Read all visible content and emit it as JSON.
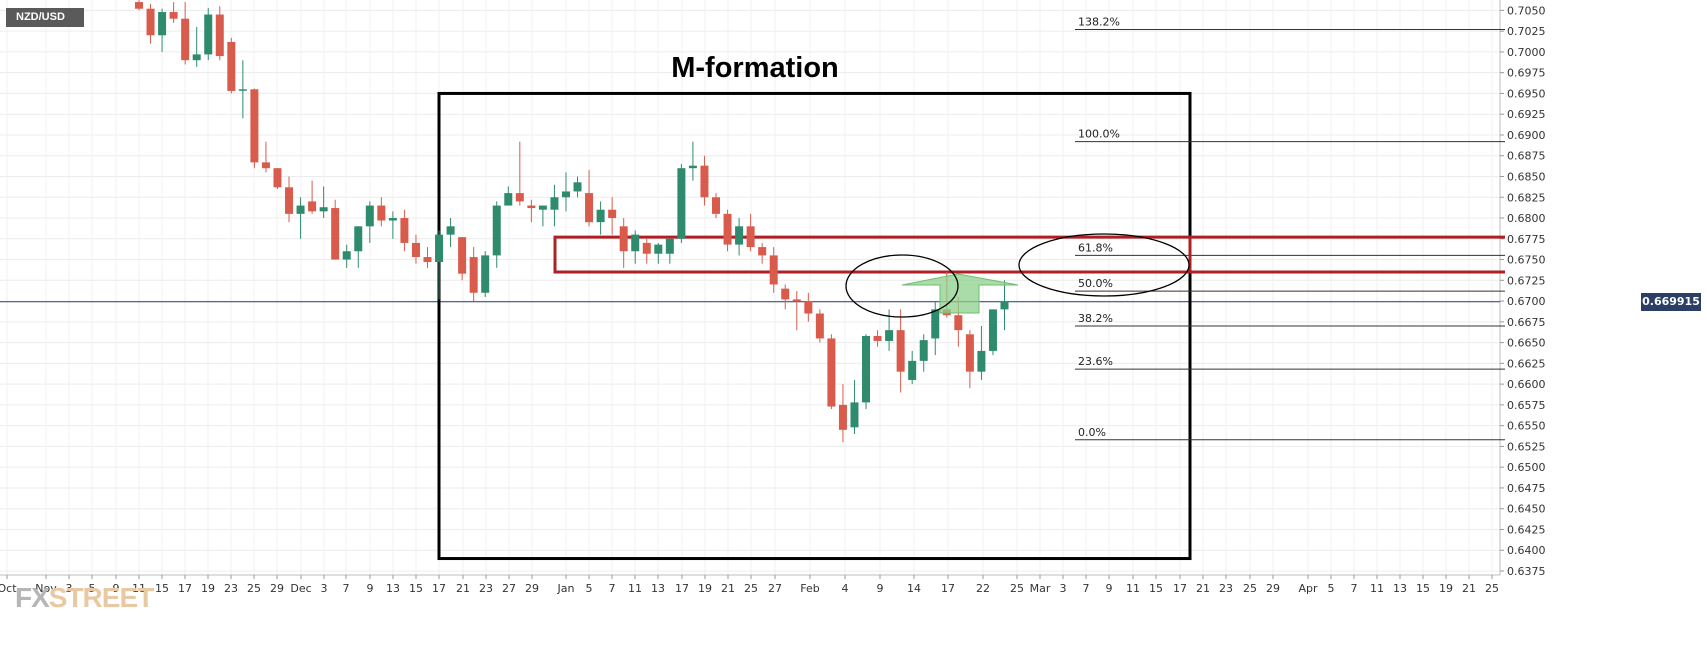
{
  "symbol": "NZD/USD",
  "annotation_title": "M-formation",
  "current_price_label": "0.669915",
  "logo": {
    "fx": "FX",
    "street": "STREET"
  },
  "colors": {
    "up": "#2e8b6e",
    "down": "#d95b4c",
    "box": "#000000",
    "zone": "#b01f24",
    "arrow": "#8ed08e",
    "price_line": "#2b3e63"
  },
  "chart_data": {
    "type": "candlestick",
    "title": "",
    "price_range": [
      0.6375,
      0.7055
    ],
    "y_ticks": [
      "0.7050",
      "0.7025",
      "0.7000",
      "0.6975",
      "0.6950",
      "0.6925",
      "0.6900",
      "0.6875",
      "0.6850",
      "0.6825",
      "0.6800",
      "0.6775",
      "0.6750",
      "0.6725",
      "0.6700",
      "0.6675",
      "0.6650",
      "0.6625",
      "0.6600",
      "0.6575",
      "0.6550",
      "0.6525",
      "0.6500",
      "0.6475",
      "0.6450",
      "0.6425",
      "0.6400",
      "0.6375"
    ],
    "x_ticks": [
      "Oct",
      "Nov",
      "3",
      "5",
      "9",
      "11",
      "15",
      "17",
      "19",
      "23",
      "25",
      "29",
      "Dec",
      "3",
      "7",
      "9",
      "13",
      "15",
      "17",
      "21",
      "23",
      "27",
      "29",
      "Jan",
      "5",
      "7",
      "11",
      "13",
      "17",
      "19",
      "21",
      "25",
      "27",
      "Feb",
      "4",
      "9",
      "14",
      "17",
      "22",
      "25",
      "Mar",
      "3",
      "7",
      "9",
      "11",
      "15",
      "17",
      "21",
      "23",
      "25",
      "29",
      "Apr",
      "5",
      "7",
      "11",
      "13",
      "15",
      "19",
      "21",
      "25"
    ],
    "current_price": 0.669915,
    "candles": [
      {
        "o": 0.706,
        "h": 0.7075,
        "l": 0.705,
        "c": 0.7052
      },
      {
        "o": 0.7052,
        "h": 0.7058,
        "l": 0.701,
        "c": 0.702
      },
      {
        "o": 0.702,
        "h": 0.7052,
        "l": 0.7,
        "c": 0.7048
      },
      {
        "o": 0.7048,
        "h": 0.706,
        "l": 0.7035,
        "c": 0.704
      },
      {
        "o": 0.704,
        "h": 0.706,
        "l": 0.6985,
        "c": 0.699
      },
      {
        "o": 0.699,
        "h": 0.703,
        "l": 0.6982,
        "c": 0.6997
      },
      {
        "o": 0.6997,
        "h": 0.7053,
        "l": 0.699,
        "c": 0.7045
      },
      {
        "o": 0.7045,
        "h": 0.7055,
        "l": 0.699,
        "c": 0.6995
      },
      {
        "o": 0.7012,
        "h": 0.7017,
        "l": 0.695,
        "c": 0.6953
      },
      {
        "o": 0.6954,
        "h": 0.699,
        "l": 0.692,
        "c": 0.6955
      },
      {
        "o": 0.6955,
        "h": 0.6956,
        "l": 0.686,
        "c": 0.6867
      },
      {
        "o": 0.6867,
        "h": 0.6892,
        "l": 0.6855,
        "c": 0.686
      },
      {
        "o": 0.686,
        "h": 0.686,
        "l": 0.6835,
        "c": 0.6837
      },
      {
        "o": 0.6837,
        "h": 0.685,
        "l": 0.6795,
        "c": 0.6805
      },
      {
        "o": 0.6805,
        "h": 0.6825,
        "l": 0.6775,
        "c": 0.6815
      },
      {
        "o": 0.682,
        "h": 0.6845,
        "l": 0.6805,
        "c": 0.6808
      },
      {
        "o": 0.6808,
        "h": 0.6838,
        "l": 0.68,
        "c": 0.6813
      },
      {
        "o": 0.6812,
        "h": 0.6822,
        "l": 0.675,
        "c": 0.675
      },
      {
        "o": 0.675,
        "h": 0.6768,
        "l": 0.674,
        "c": 0.676
      },
      {
        "o": 0.676,
        "h": 0.679,
        "l": 0.674,
        "c": 0.679
      },
      {
        "o": 0.679,
        "h": 0.682,
        "l": 0.677,
        "c": 0.6815
      },
      {
        "o": 0.6815,
        "h": 0.6825,
        "l": 0.679,
        "c": 0.6797
      },
      {
        "o": 0.6797,
        "h": 0.6808,
        "l": 0.6775,
        "c": 0.68
      },
      {
        "o": 0.68,
        "h": 0.681,
        "l": 0.676,
        "c": 0.677
      },
      {
        "o": 0.677,
        "h": 0.678,
        "l": 0.6745,
        "c": 0.6753
      },
      {
        "o": 0.6753,
        "h": 0.6765,
        "l": 0.674,
        "c": 0.6747
      },
      {
        "o": 0.6747,
        "h": 0.6785,
        "l": 0.6702,
        "c": 0.678
      },
      {
        "o": 0.678,
        "h": 0.68,
        "l": 0.6765,
        "c": 0.679
      },
      {
        "o": 0.6777,
        "h": 0.6777,
        "l": 0.6725,
        "c": 0.6733
      },
      {
        "o": 0.6753,
        "h": 0.6765,
        "l": 0.67,
        "c": 0.671
      },
      {
        "o": 0.671,
        "h": 0.676,
        "l": 0.6705,
        "c": 0.6755
      },
      {
        "o": 0.6755,
        "h": 0.682,
        "l": 0.674,
        "c": 0.6815
      },
      {
        "o": 0.6815,
        "h": 0.6838,
        "l": 0.6815,
        "c": 0.683
      },
      {
        "o": 0.683,
        "h": 0.6892,
        "l": 0.6815,
        "c": 0.682
      },
      {
        "o": 0.6815,
        "h": 0.6822,
        "l": 0.6795,
        "c": 0.6812
      },
      {
        "o": 0.681,
        "h": 0.6815,
        "l": 0.679,
        "c": 0.6815
      },
      {
        "o": 0.681,
        "h": 0.684,
        "l": 0.679,
        "c": 0.6825
      },
      {
        "o": 0.6825,
        "h": 0.6855,
        "l": 0.6808,
        "c": 0.6832
      },
      {
        "o": 0.6832,
        "h": 0.685,
        "l": 0.6825,
        "c": 0.6843
      },
      {
        "o": 0.683,
        "h": 0.6858,
        "l": 0.679,
        "c": 0.6795
      },
      {
        "o": 0.6795,
        "h": 0.682,
        "l": 0.678,
        "c": 0.681
      },
      {
        "o": 0.681,
        "h": 0.6825,
        "l": 0.678,
        "c": 0.68
      },
      {
        "o": 0.679,
        "h": 0.68,
        "l": 0.674,
        "c": 0.676
      },
      {
        "o": 0.676,
        "h": 0.6785,
        "l": 0.6745,
        "c": 0.678
      },
      {
        "o": 0.677,
        "h": 0.6775,
        "l": 0.6745,
        "c": 0.6757
      },
      {
        "o": 0.6757,
        "h": 0.677,
        "l": 0.6745,
        "c": 0.6768
      },
      {
        "o": 0.6757,
        "h": 0.6775,
        "l": 0.6745,
        "c": 0.6775
      },
      {
        "o": 0.6775,
        "h": 0.6865,
        "l": 0.677,
        "c": 0.686
      },
      {
        "o": 0.686,
        "h": 0.6892,
        "l": 0.6845,
        "c": 0.6863
      },
      {
        "o": 0.6863,
        "h": 0.6875,
        "l": 0.6815,
        "c": 0.6825
      },
      {
        "o": 0.6825,
        "h": 0.683,
        "l": 0.68,
        "c": 0.6805
      },
      {
        "o": 0.6805,
        "h": 0.681,
        "l": 0.676,
        "c": 0.6768
      },
      {
        "o": 0.6768,
        "h": 0.68,
        "l": 0.6755,
        "c": 0.679
      },
      {
        "o": 0.679,
        "h": 0.6805,
        "l": 0.676,
        "c": 0.6765
      },
      {
        "o": 0.6765,
        "h": 0.677,
        "l": 0.6745,
        "c": 0.6755
      },
      {
        "o": 0.6755,
        "h": 0.6765,
        "l": 0.671,
        "c": 0.672
      },
      {
        "o": 0.6715,
        "h": 0.672,
        "l": 0.669,
        "c": 0.6702
      },
      {
        "o": 0.6702,
        "h": 0.6712,
        "l": 0.6665,
        "c": 0.67
      },
      {
        "o": 0.67,
        "h": 0.671,
        "l": 0.6675,
        "c": 0.6685
      },
      {
        "o": 0.6685,
        "h": 0.669,
        "l": 0.665,
        "c": 0.6655
      },
      {
        "o": 0.6655,
        "h": 0.666,
        "l": 0.657,
        "c": 0.6573
      },
      {
        "o": 0.6575,
        "h": 0.66,
        "l": 0.653,
        "c": 0.6545
      },
      {
        "o": 0.6548,
        "h": 0.6605,
        "l": 0.654,
        "c": 0.6578
      },
      {
        "o": 0.6578,
        "h": 0.666,
        "l": 0.657,
        "c": 0.6658
      },
      {
        "o": 0.6658,
        "h": 0.6665,
        "l": 0.6645,
        "c": 0.6652
      },
      {
        "o": 0.6652,
        "h": 0.669,
        "l": 0.664,
        "c": 0.6665
      },
      {
        "o": 0.6665,
        "h": 0.669,
        "l": 0.659,
        "c": 0.6615
      },
      {
        "o": 0.6605,
        "h": 0.664,
        "l": 0.66,
        "c": 0.6628
      },
      {
        "o": 0.6628,
        "h": 0.666,
        "l": 0.6615,
        "c": 0.6653
      },
      {
        "o": 0.6655,
        "h": 0.67,
        "l": 0.6635,
        "c": 0.669
      },
      {
        "o": 0.669,
        "h": 0.6735,
        "l": 0.668,
        "c": 0.6683
      },
      {
        "o": 0.6683,
        "h": 0.6705,
        "l": 0.6645,
        "c": 0.6665
      },
      {
        "o": 0.666,
        "h": 0.6665,
        "l": 0.6595,
        "c": 0.6615
      },
      {
        "o": 0.6615,
        "h": 0.667,
        "l": 0.6605,
        "c": 0.664
      },
      {
        "o": 0.664,
        "h": 0.669,
        "l": 0.6635,
        "c": 0.669
      },
      {
        "o": 0.669,
        "h": 0.6725,
        "l": 0.6665,
        "c": 0.67
      }
    ],
    "fibonacci": [
      {
        "label": "138.2%",
        "price": 0.7027
      },
      {
        "label": "100.0%",
        "price": 0.6892
      },
      {
        "label": "61.8%",
        "price": 0.6755
      },
      {
        "label": "50.0%",
        "price": 0.6712
      },
      {
        "label": "38.2%",
        "price": 0.667
      },
      {
        "label": "23.6%",
        "price": 0.6618
      },
      {
        "label": "0.0%",
        "price": 0.6533
      }
    ],
    "pattern_box": {
      "start_index": 36,
      "end_price_top": 0.695,
      "bottom_price": 0.639
    },
    "resistance_zone": {
      "top": 0.6777,
      "bottom": 0.6735
    },
    "grid": true
  }
}
